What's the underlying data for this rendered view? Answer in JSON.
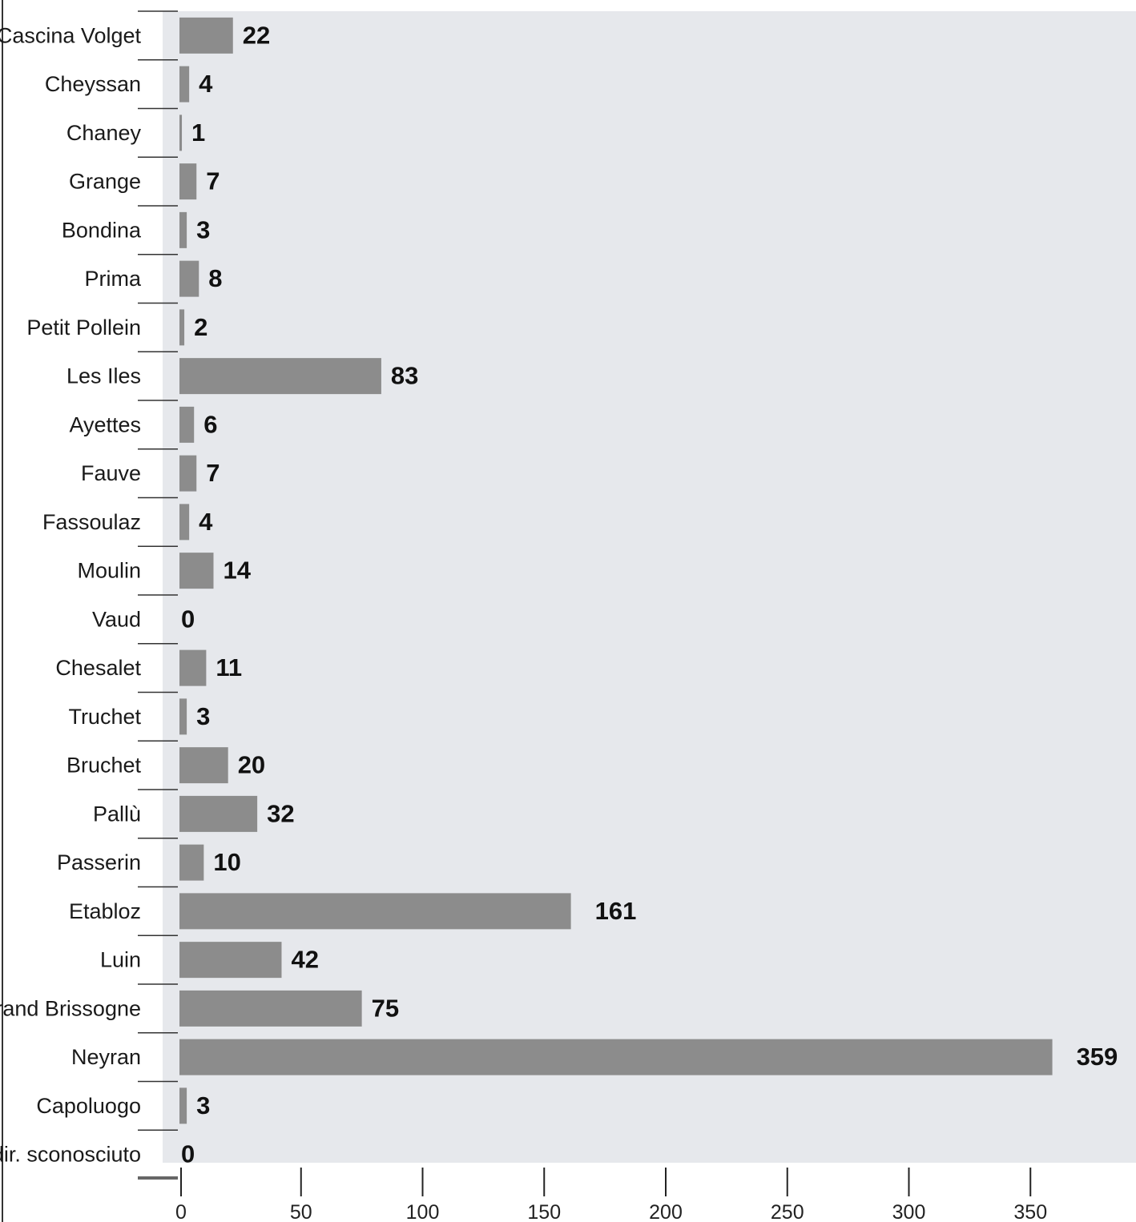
{
  "chart_data": {
    "type": "bar",
    "orientation": "horizontal",
    "categories": [
      "Cascina Volget",
      "Cheyssan",
      "Chaney",
      "Grange",
      "Bondina",
      "Prima",
      "Petit Pollein",
      "Les Iles",
      "Ayettes",
      "Fauve",
      "Fassoulaz",
      "Moulin",
      "Vaud",
      "Chesalet",
      "Truchet",
      "Bruchet",
      "Pallù",
      "Passerin",
      "Etabloz",
      "Luin",
      "Grand Brissogne",
      "Neyran",
      "Capoluogo",
      "Indir. sconosciuto"
    ],
    "values": [
      22,
      4,
      1,
      7,
      3,
      8,
      2,
      83,
      6,
      7,
      4,
      14,
      0,
      11,
      3,
      20,
      32,
      10,
      161,
      42,
      75,
      359,
      3,
      0
    ],
    "data_labels": [
      "22",
      "4",
      "1",
      "7",
      "3",
      "8",
      "2",
      "83",
      "6",
      "7",
      "4",
      "14",
      "0",
      "11",
      "3",
      "20",
      "32",
      "10",
      "161",
      "42",
      "75",
      "359",
      "3",
      "0"
    ],
    "xticks": [
      0,
      50,
      100,
      150,
      200,
      250,
      300,
      350
    ],
    "xtick_labels": [
      "0",
      "50",
      "100",
      "150",
      "200",
      "250",
      "300",
      "350"
    ],
    "xlim": [
      0,
      380
    ],
    "title": "",
    "xlabel": "",
    "ylabel": "",
    "grid": false,
    "colors": {
      "bar": "#8c8c8c",
      "plot_background": "#e6e8ec",
      "text": "#1a1a1a",
      "axis": "#222222"
    }
  }
}
